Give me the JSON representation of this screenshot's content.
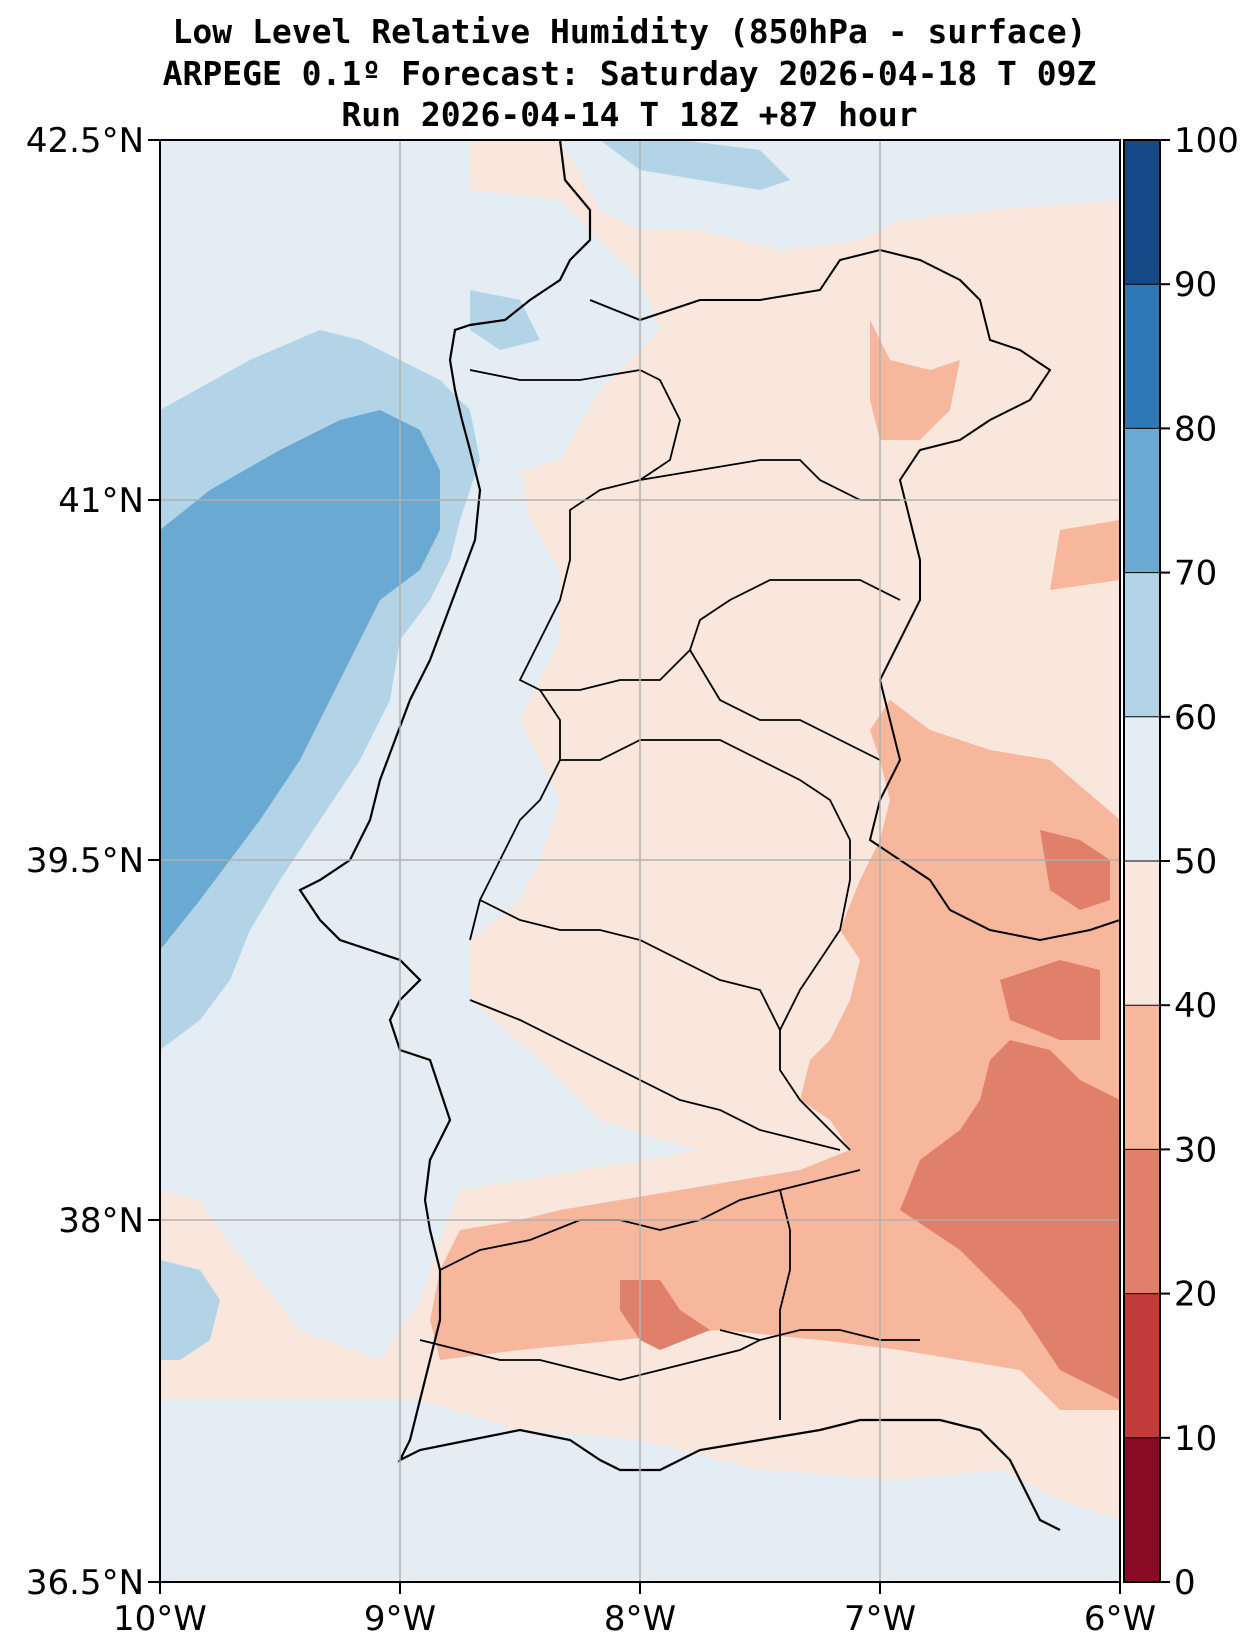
{
  "title": {
    "line1": "Low Level Relative Humidity (850hPa - surface)",
    "line2": "ARPEGE 0.1º Forecast: Saturday 2026-04-18 T 09Z",
    "line3": "Run 2026-04-14 T 18Z +87 hour"
  },
  "map": {
    "lat_range": [
      36.5,
      42.5
    ],
    "lon_range": [
      -10,
      -6
    ],
    "lat_ticks": [
      {
        "value": 42.5,
        "label": "42.5°N"
      },
      {
        "value": 41.0,
        "label": "41°N"
      },
      {
        "value": 39.5,
        "label": "39.5°N"
      },
      {
        "value": 38.0,
        "label": "38°N"
      },
      {
        "value": 36.5,
        "label": "36.5°N"
      }
    ],
    "lon_ticks": [
      {
        "value": -10,
        "label": "10°W"
      },
      {
        "value": -9,
        "label": "9°W"
      },
      {
        "value": -8,
        "label": "8°W"
      },
      {
        "value": -7,
        "label": "7°W"
      },
      {
        "value": -6,
        "label": "6°W"
      }
    ]
  },
  "colorbar": {
    "levels": [
      "0",
      "10",
      "20",
      "30",
      "40",
      "50",
      "60",
      "70",
      "80",
      "90",
      "100"
    ],
    "colors": [
      "#8b0a26",
      "#c23b3b",
      "#e07f6a",
      "#f6b79c",
      "#f9e6dd",
      "#e4ecf4",
      "#b3d4e6",
      "#6aaad2",
      "#2f78b6",
      "#134a87"
    ]
  }
}
